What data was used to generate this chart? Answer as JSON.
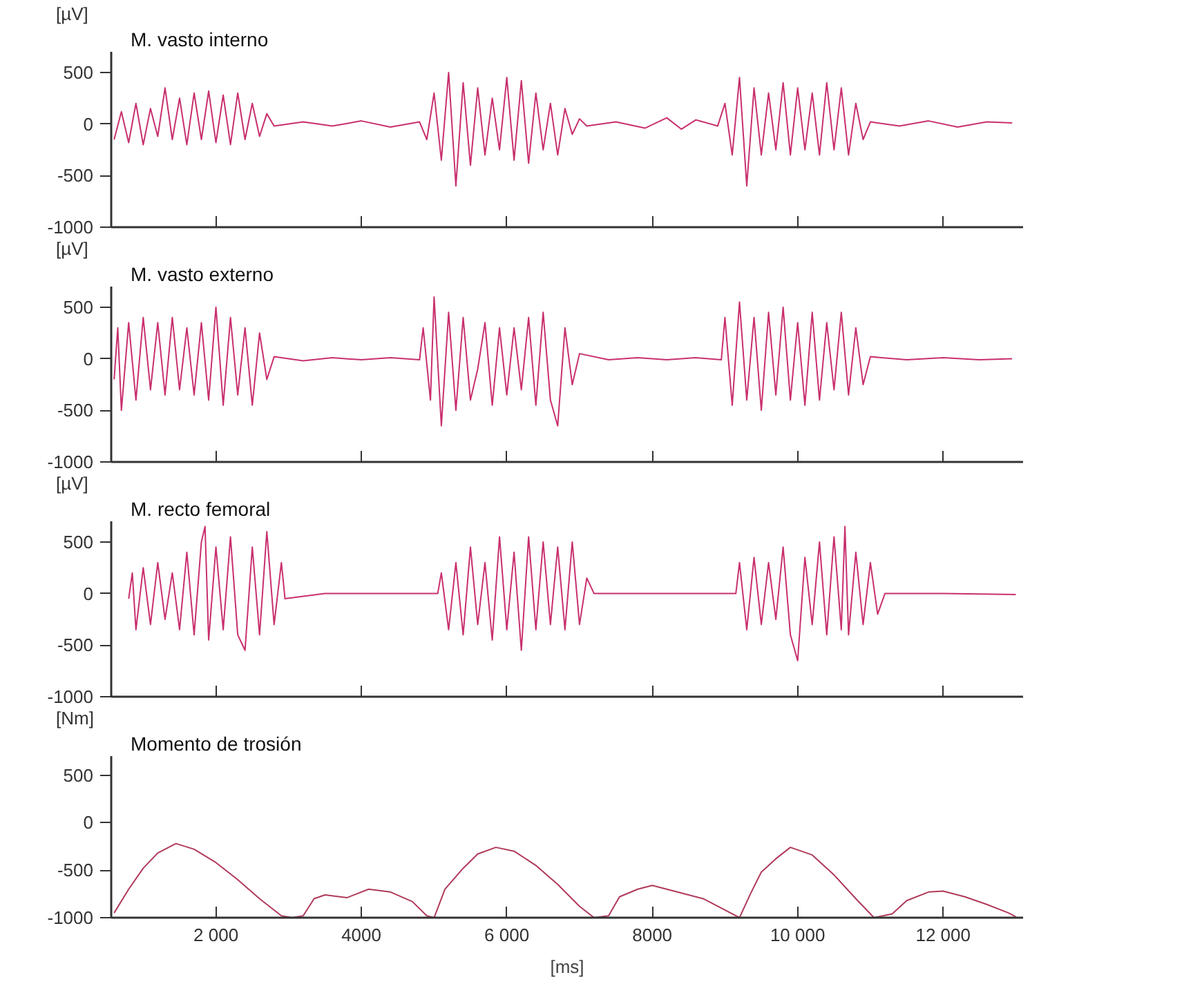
{
  "chart_data": [
    {
      "type": "line",
      "title": "M. vasto interno",
      "ylabel": "[µV]",
      "xlim": [
        560,
        13100
      ],
      "ylim": [
        -1000,
        700
      ],
      "yticks": [
        -1000,
        -500,
        0,
        500
      ],
      "tick_labels": "y",
      "xticks": [
        {
          "value": 2000,
          "label": null
        },
        {
          "value": 4000,
          "label": null
        },
        {
          "value": 6000,
          "label": null
        },
        {
          "value": 8000,
          "label": null
        },
        {
          "value": 10000,
          "label": null
        },
        {
          "value": 12000,
          "label": null
        }
      ],
      "series": [
        {
          "color": "#c8306e",
          "x": [
            600,
            700,
            800,
            900,
            1000,
            1100,
            1200,
            1300,
            1400,
            1500,
            1600,
            1700,
            1800,
            1900,
            2000,
            2100,
            2200,
            2300,
            2400,
            2500,
            2600,
            2700,
            2800,
            3200,
            3600,
            4000,
            4400,
            4800,
            4900,
            5000,
            5100,
            5200,
            5300,
            5400,
            5500,
            5600,
            5700,
            5800,
            5900,
            6000,
            6100,
            6200,
            6300,
            6400,
            6500,
            6600,
            6700,
            6800,
            6900,
            7000,
            7100,
            7500,
            7900,
            8200,
            8400,
            8600,
            8900,
            9000,
            9100,
            9200,
            9300,
            9400,
            9500,
            9600,
            9700,
            9800,
            9900,
            10000,
            10100,
            10200,
            10300,
            10400,
            10500,
            10600,
            10700,
            10800,
            10900,
            11000,
            11400,
            11800,
            12200,
            12600,
            12950
          ],
          "values": [
            -150,
            120,
            -180,
            200,
            -200,
            150,
            -120,
            350,
            -150,
            250,
            -200,
            300,
            -150,
            320,
            -180,
            280,
            -200,
            300,
            -150,
            200,
            -120,
            100,
            -20,
            20,
            -20,
            30,
            -30,
            20,
            -150,
            300,
            -350,
            500,
            -600,
            400,
            -400,
            350,
            -300,
            250,
            -250,
            450,
            -350,
            420,
            -380,
            300,
            -250,
            200,
            -300,
            150,
            -100,
            50,
            -20,
            20,
            -40,
            60,
            -50,
            40,
            -20,
            200,
            -300,
            450,
            -600,
            350,
            -300,
            300,
            -250,
            400,
            -300,
            350,
            -250,
            300,
            -300,
            400,
            -250,
            350,
            -300,
            200,
            -150,
            20,
            -20,
            30,
            -30,
            20,
            10
          ]
        }
      ]
    },
    {
      "type": "line",
      "title": "M. vasto externo",
      "ylabel": "[µV]",
      "xlim": [
        560,
        13100
      ],
      "ylim": [
        -1000,
        700
      ],
      "yticks": [
        -1000,
        -500,
        0,
        500
      ],
      "tick_labels": "y",
      "xticks": [
        {
          "value": 2000,
          "label": null
        },
        {
          "value": 4000,
          "label": null
        },
        {
          "value": 6000,
          "label": null
        },
        {
          "value": 8000,
          "label": null
        },
        {
          "value": 10000,
          "label": null
        },
        {
          "value": 12000,
          "label": null
        }
      ],
      "series": [
        {
          "color": "#c8306e",
          "x": [
            600,
            650,
            700,
            800,
            900,
            1000,
            1100,
            1200,
            1300,
            1400,
            1500,
            1600,
            1700,
            1800,
            1900,
            2000,
            2100,
            2200,
            2300,
            2400,
            2500,
            2600,
            2700,
            2800,
            3200,
            3600,
            4000,
            4400,
            4800,
            4850,
            4950,
            5000,
            5100,
            5200,
            5300,
            5400,
            5500,
            5600,
            5700,
            5800,
            5900,
            6000,
            6100,
            6200,
            6300,
            6400,
            6500,
            6600,
            6700,
            6800,
            6900,
            7000,
            7400,
            7800,
            8200,
            8600,
            8950,
            9000,
            9100,
            9200,
            9300,
            9400,
            9500,
            9600,
            9700,
            9800,
            9900,
            10000,
            10100,
            10200,
            10300,
            10400,
            10500,
            10600,
            10700,
            10800,
            10900,
            11000,
            11500,
            12000,
            12500,
            12950
          ],
          "values": [
            -200,
            300,
            -500,
            350,
            -400,
            400,
            -300,
            350,
            -350,
            400,
            -300,
            300,
            -350,
            350,
            -400,
            500,
            -450,
            400,
            -350,
            300,
            -450,
            250,
            -200,
            20,
            -20,
            10,
            -10,
            10,
            -10,
            300,
            -400,
            600,
            -650,
            450,
            -500,
            400,
            -400,
            -100,
            350,
            -450,
            300,
            -350,
            300,
            -300,
            400,
            -450,
            450,
            -400,
            -650,
            300,
            -250,
            50,
            -10,
            10,
            -10,
            10,
            -10,
            400,
            -450,
            550,
            -400,
            400,
            -500,
            450,
            -350,
            500,
            -400,
            350,
            -450,
            450,
            -400,
            350,
            -300,
            450,
            -350,
            300,
            -250,
            20,
            -10,
            10,
            -10,
            0
          ]
        }
      ]
    },
    {
      "type": "line",
      "title": "M. recto femoral",
      "ylabel": "[µV]",
      "xlim": [
        560,
        13100
      ],
      "ylim": [
        -1000,
        700
      ],
      "yticks": [
        -1000,
        -500,
        0,
        500
      ],
      "tick_labels": "y",
      "xticks": [
        {
          "value": 2000,
          "label": null
        },
        {
          "value": 4000,
          "label": null
        },
        {
          "value": 6000,
          "label": null
        },
        {
          "value": 8000,
          "label": null
        },
        {
          "value": 10000,
          "label": null
        },
        {
          "value": 12000,
          "label": null
        }
      ],
      "series": [
        {
          "color": "#c8306e",
          "x": [
            800,
            850,
            900,
            1000,
            1100,
            1200,
            1300,
            1400,
            1500,
            1600,
            1700,
            1800,
            1850,
            1900,
            2000,
            2100,
            2200,
            2300,
            2400,
            2500,
            2600,
            2700,
            2800,
            2900,
            2950,
            3500,
            4500,
            5050,
            5100,
            5200,
            5300,
            5400,
            5500,
            5600,
            5700,
            5800,
            5900,
            6000,
            6100,
            6200,
            6300,
            6400,
            6500,
            6600,
            6700,
            6800,
            6900,
            7000,
            7100,
            7200,
            8000,
            9150,
            9200,
            9300,
            9400,
            9500,
            9600,
            9700,
            9800,
            9900,
            10000,
            10100,
            10200,
            10300,
            10400,
            10500,
            10600,
            10650,
            10700,
            10800,
            10900,
            11000,
            11100,
            11200,
            12000,
            13000
          ],
          "values": [
            -50,
            200,
            -350,
            250,
            -300,
            300,
            -250,
            200,
            -350,
            400,
            -400,
            500,
            650,
            -450,
            450,
            -350,
            550,
            -400,
            -550,
            450,
            -400,
            600,
            -300,
            300,
            -50,
            0,
            0,
            0,
            200,
            -350,
            300,
            -400,
            450,
            -300,
            300,
            -450,
            550,
            -350,
            400,
            -550,
            550,
            -350,
            500,
            -300,
            450,
            -350,
            500,
            -300,
            150,
            0,
            0,
            0,
            300,
            -350,
            350,
            -300,
            300,
            -250,
            450,
            -400,
            -650,
            350,
            -300,
            500,
            -400,
            550,
            -350,
            650,
            -400,
            400,
            -300,
            300,
            -200,
            0,
            0,
            -10
          ]
        }
      ]
    },
    {
      "type": "line",
      "title": "Momento de trosión",
      "ylabel": "[Nm]",
      "xlabel": "[ms]",
      "xlim": [
        560,
        13100
      ],
      "ylim": [
        -1000,
        700
      ],
      "yticks": [
        -1000,
        -500,
        0,
        500
      ],
      "xticks": [
        {
          "value": 2000,
          "label": "2 000"
        },
        {
          "value": 4000,
          "label": "4000"
        },
        {
          "value": 6000,
          "label": "6 000"
        },
        {
          "value": 8000,
          "label": "8000"
        },
        {
          "value": 10000,
          "label": "10 000"
        },
        {
          "value": 12000,
          "label": "12 000"
        }
      ],
      "series": [
        {
          "color": "#b03a5a",
          "x": [
            600,
            800,
            1000,
            1200,
            1450,
            1700,
            2000,
            2300,
            2600,
            2900,
            3050,
            3200,
            3350,
            3500,
            3800,
            4100,
            4400,
            4700,
            4900,
            5000,
            5150,
            5400,
            5600,
            5850,
            6100,
            6400,
            6700,
            7000,
            7200,
            7400,
            7550,
            7800,
            8000,
            8300,
            8700,
            9000,
            9200,
            9350,
            9500,
            9700,
            9900,
            10200,
            10500,
            10800,
            11050,
            11300,
            11500,
            11800,
            12000,
            12300,
            12600,
            12900,
            13000
          ],
          "values": [
            -950,
            -700,
            -480,
            -320,
            -220,
            -280,
            -420,
            -600,
            -800,
            -980,
            -1000,
            -980,
            -800,
            -760,
            -790,
            -700,
            -730,
            -830,
            -980,
            -1000,
            -700,
            -480,
            -330,
            -260,
            -300,
            -450,
            -650,
            -880,
            -1000,
            -980,
            -780,
            -700,
            -660,
            -720,
            -800,
            -920,
            -1000,
            -750,
            -520,
            -380,
            -260,
            -340,
            -550,
            -800,
            -1000,
            -960,
            -820,
            -730,
            -720,
            -780,
            -860,
            -950,
            -990
          ]
        }
      ]
    }
  ]
}
